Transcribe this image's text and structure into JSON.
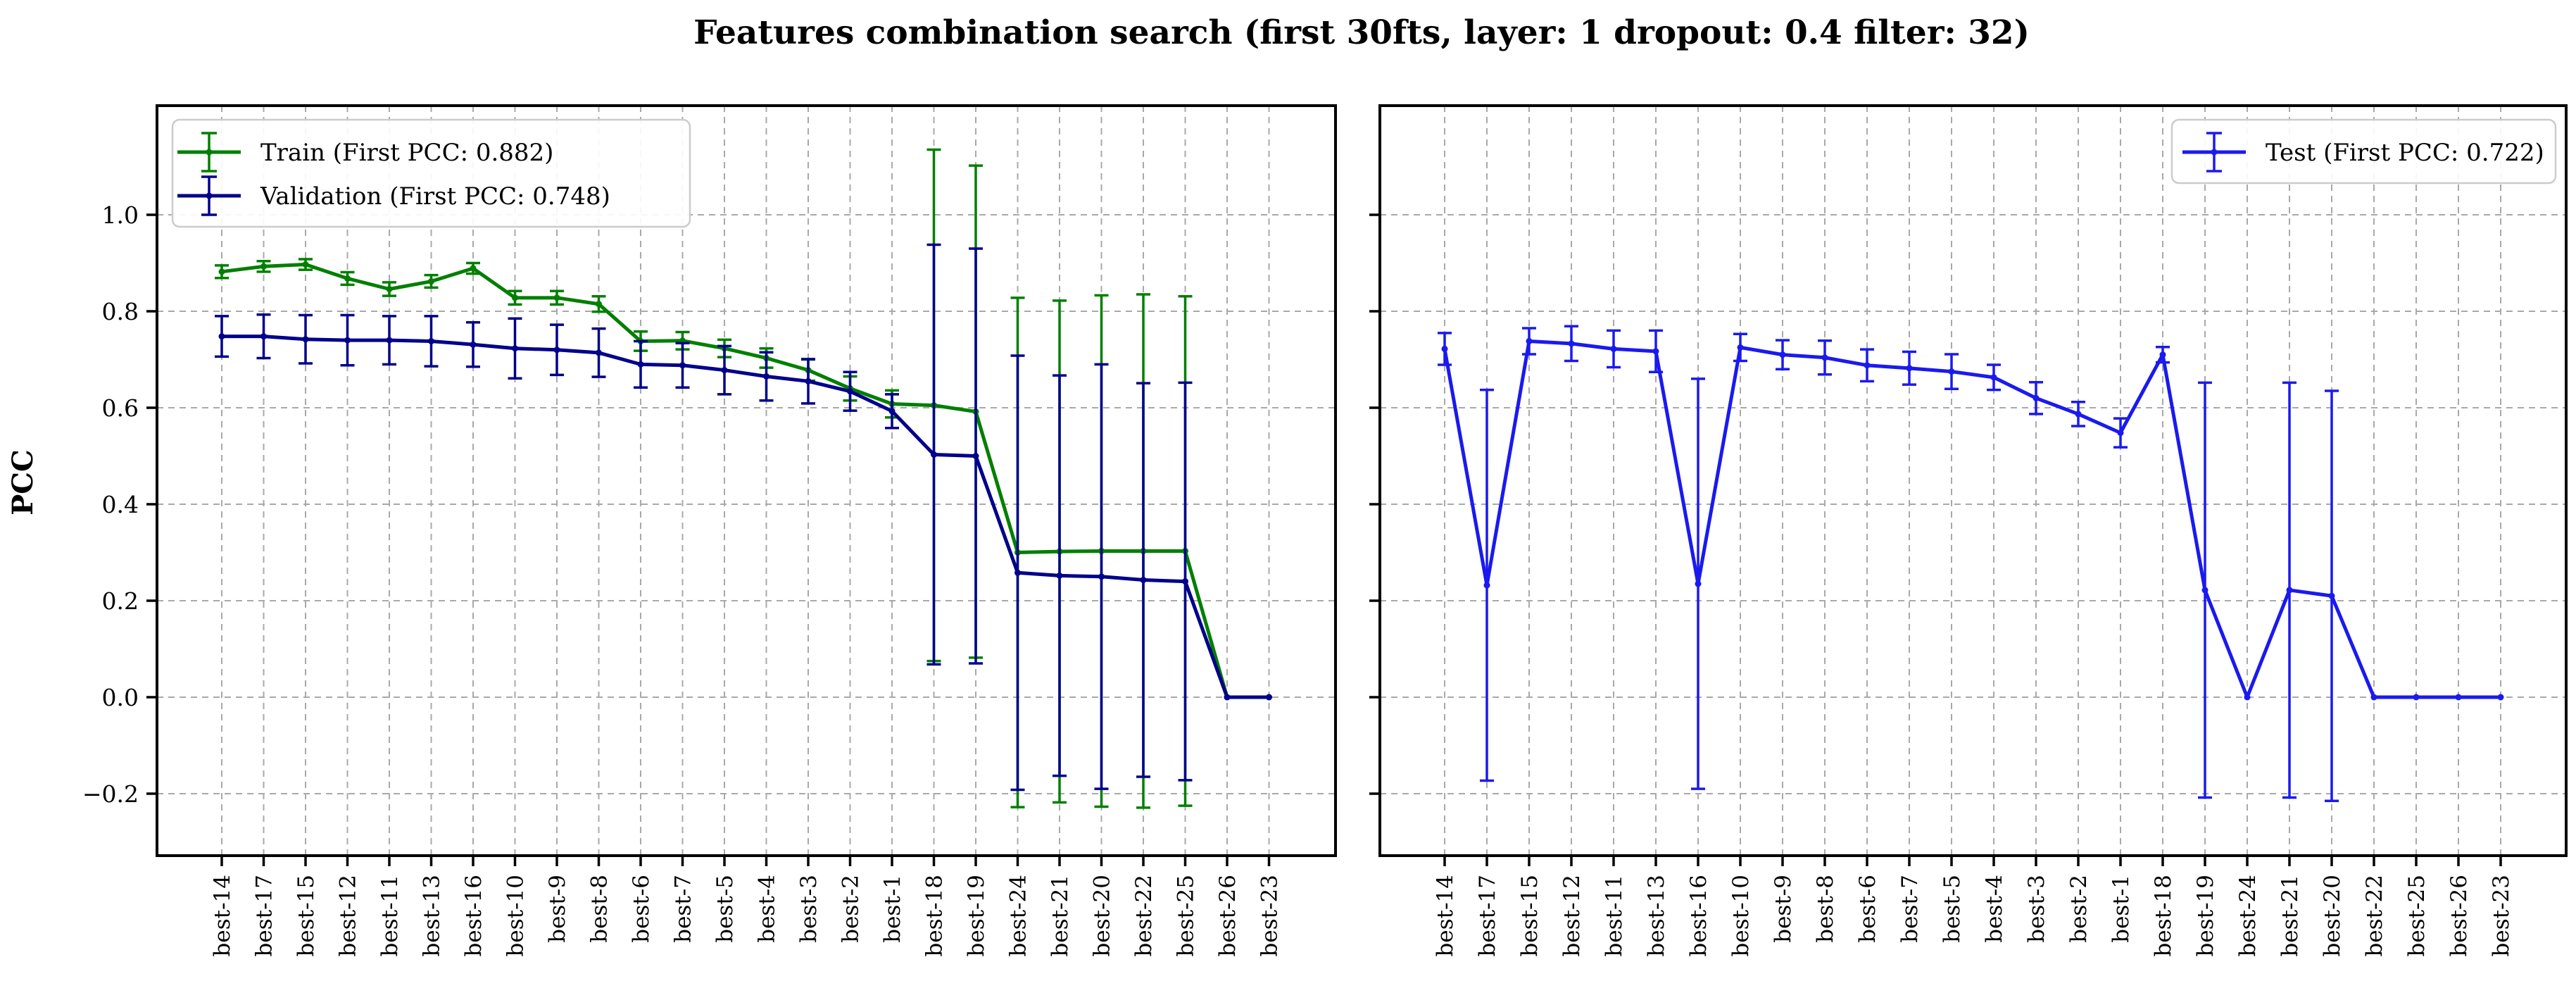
{
  "figure": {
    "title": "Features combination search (first 30fts, layer: 1 dropout: 0.4 filter: 32)",
    "ylabel": "PCC",
    "background": "#ffffff",
    "frame_color": "#000000",
    "grid_color": "#a9a9a9"
  },
  "chart_data": [
    {
      "type": "line",
      "panel": "left",
      "ylabel": "PCC",
      "ylim": [
        -0.33,
        1.23
      ],
      "grid": true,
      "legend_position": "upper left",
      "yticks": [
        {
          "label": "−0.2",
          "value": -0.2
        },
        {
          "label": "0.0",
          "value": 0.0
        },
        {
          "label": "0.2",
          "value": 0.2
        },
        {
          "label": "0.4",
          "value": 0.4
        },
        {
          "label": "0.6",
          "value": 0.6
        },
        {
          "label": "0.8",
          "value": 0.8
        },
        {
          "label": "1.0",
          "value": 1.0
        }
      ],
      "categories": [
        "best-14",
        "best-17",
        "best-15",
        "best-12",
        "best-11",
        "best-13",
        "best-16",
        "best-10",
        "best-9",
        "best-8",
        "best-6",
        "best-7",
        "best-5",
        "best-4",
        "best-3",
        "best-2",
        "best-1",
        "best-18",
        "best-19",
        "best-24",
        "best-21",
        "best-20",
        "best-22",
        "best-25",
        "best-26",
        "best-23"
      ],
      "series": [
        {
          "name": "Train (First PCC: 0.882)",
          "color": "#007f00",
          "values": [
            0.882,
            0.893,
            0.897,
            0.868,
            0.846,
            0.862,
            0.889,
            0.828,
            0.828,
            0.815,
            0.738,
            0.739,
            0.723,
            0.703,
            0.678,
            0.64,
            0.608,
            0.605,
            0.592,
            0.3,
            0.302,
            0.303,
            0.303,
            0.303,
            0.0,
            0.0
          ],
          "errors": [
            0.013,
            0.011,
            0.011,
            0.013,
            0.014,
            0.013,
            0.011,
            0.014,
            0.014,
            0.016,
            0.02,
            0.018,
            0.018,
            0.02,
            0.022,
            0.025,
            0.028,
            0.53,
            0.51,
            0.528,
            0.52,
            0.53,
            0.532,
            0.528,
            0.0,
            0.0
          ]
        },
        {
          "name": "Validation (First PCC: 0.748)",
          "color": "#00008b",
          "values": [
            0.748,
            0.748,
            0.742,
            0.74,
            0.74,
            0.738,
            0.731,
            0.723,
            0.72,
            0.714,
            0.69,
            0.688,
            0.678,
            0.665,
            0.655,
            0.634,
            0.593,
            0.503,
            0.5,
            0.258,
            0.252,
            0.25,
            0.243,
            0.24,
            0.0,
            0.0
          ],
          "errors": [
            0.042,
            0.045,
            0.05,
            0.052,
            0.05,
            0.052,
            0.046,
            0.062,
            0.052,
            0.05,
            0.048,
            0.046,
            0.05,
            0.05,
            0.046,
            0.04,
            0.035,
            0.435,
            0.43,
            0.45,
            0.415,
            0.44,
            0.408,
            0.412,
            0.0,
            0.0
          ]
        }
      ]
    },
    {
      "type": "line",
      "panel": "right",
      "ylabel": "",
      "ylim": [
        -0.33,
        1.23
      ],
      "grid": true,
      "legend_position": "upper right",
      "yticks": [
        {
          "label": "−0.2",
          "value": -0.2
        },
        {
          "label": "0.0",
          "value": 0.0
        },
        {
          "label": "0.2",
          "value": 0.2
        },
        {
          "label": "0.4",
          "value": 0.4
        },
        {
          "label": "0.6",
          "value": 0.6
        },
        {
          "label": "0.8",
          "value": 0.8
        },
        {
          "label": "1.0",
          "value": 1.0
        }
      ],
      "categories": [
        "best-14",
        "best-17",
        "best-15",
        "best-12",
        "best-11",
        "best-13",
        "best-16",
        "best-10",
        "best-9",
        "best-8",
        "best-6",
        "best-7",
        "best-5",
        "best-4",
        "best-3",
        "best-2",
        "best-1",
        "best-18",
        "best-19",
        "best-24",
        "best-21",
        "best-20",
        "best-22",
        "best-25",
        "best-26",
        "best-23"
      ],
      "series": [
        {
          "name": "Test (First PCC: 0.722)",
          "color": "#1a1aee",
          "values": [
            0.722,
            0.232,
            0.738,
            0.733,
            0.722,
            0.717,
            0.235,
            0.725,
            0.71,
            0.704,
            0.688,
            0.682,
            0.675,
            0.663,
            0.62,
            0.587,
            0.548,
            0.71,
            0.222,
            0.0,
            0.222,
            0.21,
            0.0,
            0.0,
            0.0,
            0.0
          ],
          "errors": [
            0.033,
            0.405,
            0.027,
            0.036,
            0.038,
            0.043,
            0.425,
            0.028,
            0.03,
            0.035,
            0.033,
            0.034,
            0.036,
            0.026,
            0.033,
            0.025,
            0.03,
            0.016,
            0.43,
            0.0,
            0.43,
            0.425,
            0.0,
            0.0,
            0.0,
            0.0
          ]
        }
      ]
    }
  ]
}
